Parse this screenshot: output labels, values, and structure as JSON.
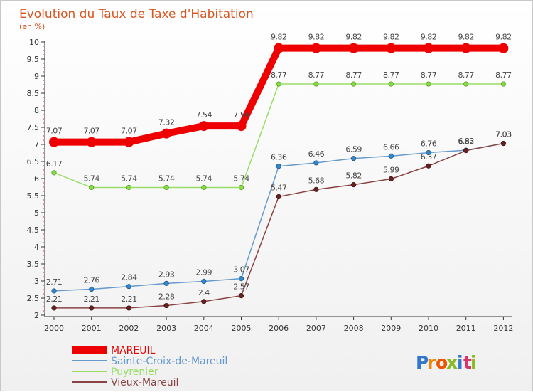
{
  "chart_data": {
    "type": "line",
    "title": "Evolution du Taux de Taxe d'Habitation",
    "unit_label": "(en %)",
    "x": [
      "2000",
      "2001",
      "2002",
      "2003",
      "2004",
      "2005",
      "2006",
      "2007",
      "2008",
      "2009",
      "2010",
      "2011",
      "2012"
    ],
    "ylim": [
      2,
      10
    ],
    "yticks": [
      "2",
      "2.5",
      "3",
      "3.5",
      "4",
      "4.5",
      "5",
      "5.5",
      "6",
      "6.5",
      "7",
      "7.5",
      "8",
      "8.5",
      "9",
      "9.5",
      "10"
    ],
    "grid": false,
    "legend_position": "bottom-left",
    "series": [
      {
        "name": "MAREUIL",
        "color": "#ee0000",
        "values": [
          7.07,
          7.07,
          7.07,
          7.32,
          7.54,
          7.54,
          9.82,
          9.82,
          9.82,
          9.82,
          9.82,
          9.82,
          9.82
        ],
        "labels": [
          "7.07",
          "7.07",
          "7.07",
          "7.32",
          "7.54",
          "7.54",
          "9.82",
          "9.82",
          "9.82",
          "9.82",
          "9.82",
          "9.82",
          "9.82"
        ]
      },
      {
        "name": "Sainte-Croix-de-Mareuil",
        "color": "#6699cc",
        "values": [
          2.71,
          2.76,
          2.84,
          2.93,
          2.99,
          3.07,
          6.36,
          6.46,
          6.59,
          6.66,
          6.76,
          6.83,
          7.03
        ],
        "labels": [
          "2.71",
          "2.76",
          "2.84",
          "2.93",
          "2.99",
          "3.07",
          "6.36",
          "6.46",
          "6.59",
          "6.66",
          "6.76",
          "6.83",
          "7.03"
        ]
      },
      {
        "name": "Puyrenier",
        "color": "#99dd66",
        "values": [
          6.17,
          5.74,
          5.74,
          5.74,
          5.74,
          5.74,
          8.77,
          8.77,
          8.77,
          8.77,
          8.77,
          8.77,
          8.77
        ],
        "labels": [
          "6.17",
          "5.74",
          "5.74",
          "5.74",
          "5.74",
          "5.74",
          "8.77",
          "8.77",
          "8.77",
          "8.77",
          "8.77",
          "8.77",
          "8.77"
        ]
      },
      {
        "name": "Vieux-Mareuil",
        "color": "#884444",
        "values": [
          2.21,
          2.21,
          2.21,
          2.28,
          2.4,
          2.57,
          5.47,
          5.68,
          5.82,
          5.99,
          6.37,
          6.82,
          7.03
        ],
        "labels": [
          "2.21",
          "2.21",
          "2.21",
          "2.28",
          "2.4",
          "2.57",
          "5.47",
          "5.68",
          "5.82",
          "5.99",
          "6.37",
          "6.82",
          "7.03"
        ]
      }
    ]
  },
  "brand": {
    "text": "Proxiti",
    "letters": [
      "P",
      "r",
      "o",
      "x",
      "i",
      "t",
      "i"
    ],
    "colors": [
      "#3377cc",
      "#ee8800",
      "#ee5500",
      "#88bb22",
      "#3377cc",
      "#dd3366",
      "#88bb22"
    ]
  }
}
